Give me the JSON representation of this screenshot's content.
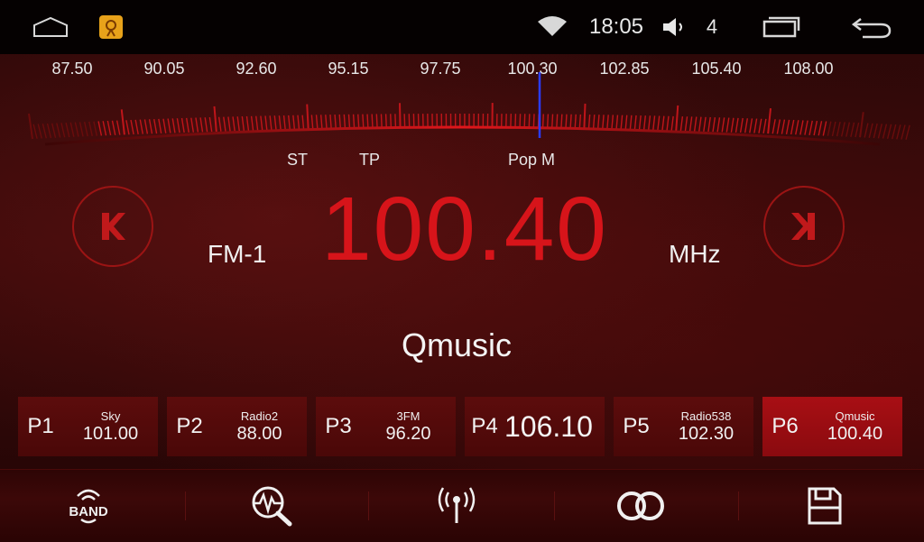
{
  "status_bar": {
    "time": "18:05",
    "volume": "4",
    "icons": [
      "home-icon",
      "radio-app-icon",
      "wifi-icon",
      "speaker-icon",
      "recent-apps-icon",
      "back-icon"
    ]
  },
  "dial": {
    "ticks": [
      "87.50",
      "90.05",
      "92.60",
      "95.15",
      "97.75",
      "100.30",
      "102.85",
      "105.40",
      "108.00"
    ],
    "indicators": [
      "ST",
      "TP",
      "Pop M"
    ]
  },
  "tuner": {
    "band": "FM-1",
    "frequency": "100.40",
    "unit": "MHz",
    "station": "Qmusic"
  },
  "presets": [
    {
      "num": "P1",
      "name": "Sky",
      "freq": "101.00"
    },
    {
      "num": "P2",
      "name": "Radio2",
      "freq": "88.00"
    },
    {
      "num": "P3",
      "name": "3FM",
      "freq": "96.20"
    },
    {
      "num": "P4",
      "name": "",
      "freq": "106.10"
    },
    {
      "num": "P5",
      "name": "Radio538",
      "freq": "102.30"
    },
    {
      "num": "P6",
      "name": "Qmusic",
      "freq": "100.40"
    }
  ],
  "toolbar": {
    "band_label": "BAND",
    "icons": [
      "band-icon",
      "scan-icon",
      "antenna-icon",
      "stereo-icon",
      "save-icon"
    ]
  },
  "colors": {
    "accent_red": "#d7141a",
    "active_preset": "#a80f14",
    "needle": "#2a3cff"
  }
}
